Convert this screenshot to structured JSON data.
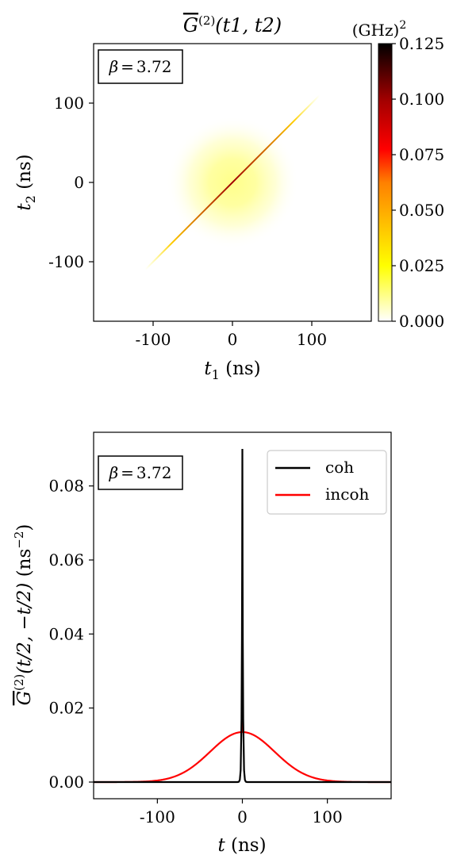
{
  "chart_data": [
    {
      "type": "heatmap",
      "title": "G̅(2)(t1, t2)",
      "title_parts": {
        "base": "G",
        "sup": "(2)",
        "args": "(t1, t2)"
      },
      "xlabel": "t1 (ns)",
      "xlabel_parts": {
        "var": "t",
        "sub": "1",
        "unit": "(ns)"
      },
      "ylabel": "t2 (ns)",
      "ylabel_parts": {
        "var": "t",
        "sub": "2",
        "unit": "(ns)"
      },
      "xlim": [
        -175,
        175
      ],
      "ylim": [
        -175,
        175
      ],
      "xticks": [
        -100,
        0,
        100
      ],
      "yticks": [
        -100,
        0,
        100
      ],
      "xtick_labels": [
        "-100",
        "0",
        "100"
      ],
      "ytick_labels": [
        "-100",
        "0",
        "100"
      ],
      "annotation": "β = 3.72",
      "annotation_parts": {
        "sym": "β",
        "eq": "=",
        "val": "3.72"
      },
      "colorbar": {
        "label": "(GHz)2",
        "label_parts": {
          "base": "(GHz)",
          "sup": "2"
        },
        "min": 0.0,
        "max": 0.125,
        "ticks": [
          0.0,
          0.025,
          0.05,
          0.075,
          0.1,
          0.125
        ],
        "tick_labels": [
          "0.000",
          "0.025",
          "0.050",
          "0.075",
          "0.100",
          "0.125"
        ],
        "colormap": "hot_r",
        "colors": [
          "#ffffff",
          "#ffff00",
          "#ff8000",
          "#ff0000",
          "#a00000",
          "#000000"
        ]
      },
      "incoherent_peak": 0.014,
      "incoherent_width_ns": 38,
      "diagonal_peak": 0.125,
      "diagonal_extent_ns": [
        -110,
        110
      ]
    },
    {
      "type": "line",
      "xlabel": "t (ns)",
      "xlabel_parts": {
        "var": "t",
        "unit": "(ns)"
      },
      "ylabel": "G̅(2)(t/2, −t/2) (ns−2)",
      "ylabel_parts": {
        "base": "G",
        "sup": "(2)",
        "args": "(t/2, −t/2)",
        "unit_base": "(ns",
        "unit_sup": "−2",
        "unit_close": ")"
      },
      "xlim": [
        -175,
        175
      ],
      "ylim": [
        -0.0045,
        0.0945
      ],
      "xticks": [
        -100,
        0,
        100
      ],
      "xtick_labels": [
        "-100",
        "0",
        "100"
      ],
      "yticks": [
        0.0,
        0.02,
        0.04,
        0.06,
        0.08
      ],
      "ytick_labels": [
        "0.00",
        "0.02",
        "0.04",
        "0.06",
        "0.08"
      ],
      "annotation": "β = 3.72",
      "annotation_parts": {
        "sym": "β",
        "eq": "=",
        "val": "3.72"
      },
      "legend_position": "top-right",
      "series": [
        {
          "name": "coh",
          "color": "#000000",
          "peak": 0.09,
          "center": 0,
          "width_ns": 1.2
        },
        {
          "name": "incoh",
          "color": "#ff0000",
          "peak": 0.0135,
          "center": 0,
          "sigma_ns": 38,
          "spike_top": 0.026
        }
      ]
    }
  ]
}
